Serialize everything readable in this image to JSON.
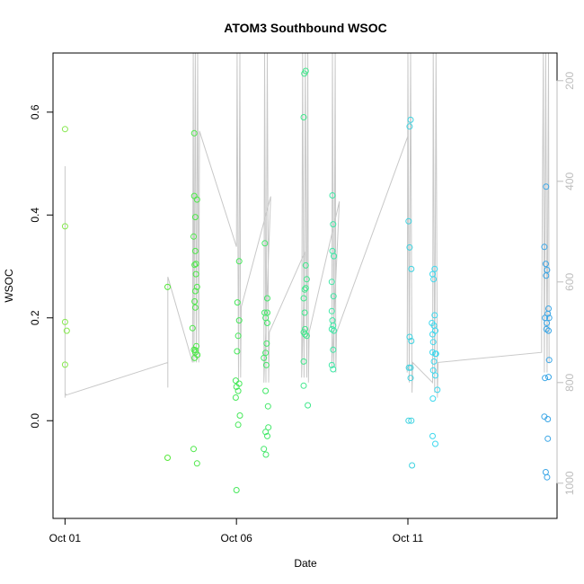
{
  "chart_data": {
    "type": "scatter",
    "title": "ATOM3 Southbound WSOC",
    "xlabel": "Date",
    "ylabel": "WSOC",
    "x_ticks": [
      "Oct 01",
      "Oct 06",
      "Oct 11"
    ],
    "x_tick_days": [
      0,
      5,
      10
    ],
    "xlim_days": [
      -0.35,
      14.35
    ],
    "ylim": [
      -0.19,
      0.715
    ],
    "y_ticks": [
      0.0,
      0.2,
      0.4,
      0.6
    ],
    "y_tick_labels": [
      "0.0",
      "0.2",
      "0.4",
      "0.6"
    ],
    "y2_ticks": [
      200,
      400,
      600,
      800,
      1000
    ],
    "y2_tick_labels": [
      "200",
      "400",
      "600",
      "800",
      "1000"
    ],
    "y2lim": [
      1070,
      145
    ],
    "y2_color": "#bdbdbd",
    "grid": false,
    "colors": {
      "altitude_line": "#c8c8c8",
      "axis": "#000000"
    },
    "points": [
      {
        "day": 0.0,
        "wsoc": 0.567,
        "color": "#86e84e"
      },
      {
        "day": 0.0,
        "wsoc": 0.378,
        "color": "#86e84e"
      },
      {
        "day": 0.0,
        "wsoc": 0.192,
        "color": "#86e84e"
      },
      {
        "day": 0.05,
        "wsoc": 0.175,
        "color": "#86e84e"
      },
      {
        "day": 0.0,
        "wsoc": 0.109,
        "color": "#86e84e"
      },
      {
        "day": 2.99,
        "wsoc": 0.26,
        "color": "#55e83a"
      },
      {
        "day": 2.99,
        "wsoc": -0.072,
        "color": "#55e83a"
      },
      {
        "day": 3.77,
        "wsoc": 0.559,
        "color": "#4ee84a"
      },
      {
        "day": 3.77,
        "wsoc": 0.437,
        "color": "#4ee84a"
      },
      {
        "day": 3.85,
        "wsoc": 0.43,
        "color": "#4ee84a"
      },
      {
        "day": 3.8,
        "wsoc": 0.396,
        "color": "#4ee84a"
      },
      {
        "day": 3.75,
        "wsoc": 0.358,
        "color": "#4ee84a"
      },
      {
        "day": 3.8,
        "wsoc": 0.33,
        "color": "#4ee84a"
      },
      {
        "day": 3.82,
        "wsoc": 0.305,
        "color": "#4ee84a"
      },
      {
        "day": 3.78,
        "wsoc": 0.303,
        "color": "#4ee84a"
      },
      {
        "day": 3.82,
        "wsoc": 0.285,
        "color": "#4ee84a"
      },
      {
        "day": 3.85,
        "wsoc": 0.26,
        "color": "#4ee84a"
      },
      {
        "day": 3.8,
        "wsoc": 0.252,
        "color": "#4ee84a"
      },
      {
        "day": 3.78,
        "wsoc": 0.232,
        "color": "#4ee84a"
      },
      {
        "day": 3.8,
        "wsoc": 0.22,
        "color": "#4ee84a"
      },
      {
        "day": 3.72,
        "wsoc": 0.18,
        "color": "#4ee84a"
      },
      {
        "day": 3.83,
        "wsoc": 0.145,
        "color": "#4ee84a"
      },
      {
        "day": 3.76,
        "wsoc": 0.138,
        "color": "#4ee84a"
      },
      {
        "day": 3.8,
        "wsoc": 0.133,
        "color": "#4ee84a"
      },
      {
        "day": 3.86,
        "wsoc": 0.128,
        "color": "#4ee84a"
      },
      {
        "day": 3.78,
        "wsoc": 0.122,
        "color": "#4ee84a"
      },
      {
        "day": 3.8,
        "wsoc": 0.137,
        "color": "#4ee84a"
      },
      {
        "day": 3.75,
        "wsoc": -0.055,
        "color": "#4ee84a"
      },
      {
        "day": 3.85,
        "wsoc": -0.083,
        "color": "#4ee84a"
      },
      {
        "day": 5.08,
        "wsoc": 0.31,
        "color": "#46e85a"
      },
      {
        "day": 5.03,
        "wsoc": 0.23,
        "color": "#46e85a"
      },
      {
        "day": 5.08,
        "wsoc": 0.195,
        "color": "#46e85a"
      },
      {
        "day": 5.05,
        "wsoc": 0.165,
        "color": "#46e85a"
      },
      {
        "day": 5.02,
        "wsoc": 0.135,
        "color": "#46e85a"
      },
      {
        "day": 4.98,
        "wsoc": 0.078,
        "color": "#46e85a"
      },
      {
        "day": 5.08,
        "wsoc": 0.072,
        "color": "#46e85a"
      },
      {
        "day": 5.0,
        "wsoc": 0.066,
        "color": "#46e85a"
      },
      {
        "day": 5.05,
        "wsoc": 0.058,
        "color": "#46e85a"
      },
      {
        "day": 4.98,
        "wsoc": 0.045,
        "color": "#46e85a"
      },
      {
        "day": 5.1,
        "wsoc": 0.01,
        "color": "#46e85a"
      },
      {
        "day": 5.05,
        "wsoc": -0.008,
        "color": "#46e85a"
      },
      {
        "day": 5.0,
        "wsoc": -0.135,
        "color": "#46e85a"
      },
      {
        "day": 5.83,
        "wsoc": 0.345,
        "color": "#44e86a"
      },
      {
        "day": 5.9,
        "wsoc": 0.238,
        "color": "#44e86a"
      },
      {
        "day": 5.82,
        "wsoc": 0.21,
        "color": "#44e86a"
      },
      {
        "day": 5.9,
        "wsoc": 0.21,
        "color": "#44e86a"
      },
      {
        "day": 5.85,
        "wsoc": 0.2,
        "color": "#44e86a"
      },
      {
        "day": 5.9,
        "wsoc": 0.19,
        "color": "#44e86a"
      },
      {
        "day": 5.88,
        "wsoc": 0.15,
        "color": "#44e86a"
      },
      {
        "day": 5.85,
        "wsoc": 0.132,
        "color": "#44e86a"
      },
      {
        "day": 5.8,
        "wsoc": 0.122,
        "color": "#44e86a"
      },
      {
        "day": 5.87,
        "wsoc": 0.108,
        "color": "#44e86a"
      },
      {
        "day": 5.85,
        "wsoc": 0.058,
        "color": "#44e86a"
      },
      {
        "day": 5.92,
        "wsoc": 0.028,
        "color": "#44e86a"
      },
      {
        "day": 5.93,
        "wsoc": -0.013,
        "color": "#44e86a"
      },
      {
        "day": 5.85,
        "wsoc": -0.022,
        "color": "#44e86a"
      },
      {
        "day": 5.9,
        "wsoc": -0.03,
        "color": "#44e86a"
      },
      {
        "day": 5.8,
        "wsoc": -0.055,
        "color": "#44e86a"
      },
      {
        "day": 5.86,
        "wsoc": -0.066,
        "color": "#44e86a"
      },
      {
        "day": 7.02,
        "wsoc": 0.68,
        "color": "#40e88c"
      },
      {
        "day": 6.98,
        "wsoc": 0.675,
        "color": "#40e88c"
      },
      {
        "day": 6.96,
        "wsoc": 0.59,
        "color": "#40e88c"
      },
      {
        "day": 7.02,
        "wsoc": 0.302,
        "color": "#40e88c"
      },
      {
        "day": 7.05,
        "wsoc": 0.275,
        "color": "#40e88c"
      },
      {
        "day": 7.02,
        "wsoc": 0.258,
        "color": "#40e88c"
      },
      {
        "day": 6.99,
        "wsoc": 0.255,
        "color": "#40e88c"
      },
      {
        "day": 6.96,
        "wsoc": 0.238,
        "color": "#40e88c"
      },
      {
        "day": 6.99,
        "wsoc": 0.21,
        "color": "#40e88c"
      },
      {
        "day": 6.96,
        "wsoc": 0.172,
        "color": "#40e88c"
      },
      {
        "day": 7.0,
        "wsoc": 0.168,
        "color": "#40e88c"
      },
      {
        "day": 7.05,
        "wsoc": 0.165,
        "color": "#40e88c"
      },
      {
        "day": 7.0,
        "wsoc": 0.178,
        "color": "#40e88c"
      },
      {
        "day": 6.96,
        "wsoc": 0.115,
        "color": "#40e88c"
      },
      {
        "day": 6.96,
        "wsoc": 0.068,
        "color": "#40e88c"
      },
      {
        "day": 7.08,
        "wsoc": 0.03,
        "color": "#40e88c"
      },
      {
        "day": 7.8,
        "wsoc": 0.438,
        "color": "#3ee8a6"
      },
      {
        "day": 7.82,
        "wsoc": 0.382,
        "color": "#3ee8a6"
      },
      {
        "day": 7.8,
        "wsoc": 0.33,
        "color": "#3ee8a6"
      },
      {
        "day": 7.84,
        "wsoc": 0.32,
        "color": "#3ee8a6"
      },
      {
        "day": 7.78,
        "wsoc": 0.27,
        "color": "#3ee8a6"
      },
      {
        "day": 7.83,
        "wsoc": 0.242,
        "color": "#3ee8a6"
      },
      {
        "day": 7.78,
        "wsoc": 0.213,
        "color": "#3ee8a6"
      },
      {
        "day": 7.8,
        "wsoc": 0.195,
        "color": "#3ee8a6"
      },
      {
        "day": 7.82,
        "wsoc": 0.185,
        "color": "#3ee8a6"
      },
      {
        "day": 7.78,
        "wsoc": 0.178,
        "color": "#3ee8a6"
      },
      {
        "day": 7.84,
        "wsoc": 0.175,
        "color": "#3ee8a6"
      },
      {
        "day": 7.82,
        "wsoc": 0.138,
        "color": "#3ee8a6"
      },
      {
        "day": 7.78,
        "wsoc": 0.108,
        "color": "#3ee8a6"
      },
      {
        "day": 7.82,
        "wsoc": 0.1,
        "color": "#3ee8a6"
      },
      {
        "day": 10.08,
        "wsoc": 0.585,
        "color": "#3ed2e0"
      },
      {
        "day": 10.05,
        "wsoc": 0.572,
        "color": "#3ed2e0"
      },
      {
        "day": 10.02,
        "wsoc": 0.388,
        "color": "#3ed2e0"
      },
      {
        "day": 10.05,
        "wsoc": 0.337,
        "color": "#3ed2e0"
      },
      {
        "day": 10.1,
        "wsoc": 0.295,
        "color": "#3ed2e0"
      },
      {
        "day": 10.05,
        "wsoc": 0.163,
        "color": "#3ed2e0"
      },
      {
        "day": 10.1,
        "wsoc": 0.155,
        "color": "#3ed2e0"
      },
      {
        "day": 10.03,
        "wsoc": 0.103,
        "color": "#3ed2e0"
      },
      {
        "day": 10.08,
        "wsoc": 0.103,
        "color": "#3ed2e0"
      },
      {
        "day": 10.08,
        "wsoc": 0.083,
        "color": "#3ed2e0"
      },
      {
        "day": 10.02,
        "wsoc": 0.0,
        "color": "#3ed2e0"
      },
      {
        "day": 10.1,
        "wsoc": 0.0,
        "color": "#3ed2e0"
      },
      {
        "day": 10.12,
        "wsoc": -0.087,
        "color": "#3ed2e0"
      },
      {
        "day": 10.78,
        "wsoc": 0.295,
        "color": "#3ed8ee"
      },
      {
        "day": 10.72,
        "wsoc": 0.285,
        "color": "#3ed8ee"
      },
      {
        "day": 10.75,
        "wsoc": 0.275,
        "color": "#3ed8ee"
      },
      {
        "day": 10.78,
        "wsoc": 0.205,
        "color": "#3ed8ee"
      },
      {
        "day": 10.7,
        "wsoc": 0.19,
        "color": "#3ed8ee"
      },
      {
        "day": 10.76,
        "wsoc": 0.185,
        "color": "#3ed8ee"
      },
      {
        "day": 10.8,
        "wsoc": 0.175,
        "color": "#3ed8ee"
      },
      {
        "day": 10.72,
        "wsoc": 0.168,
        "color": "#3ed8ee"
      },
      {
        "day": 10.74,
        "wsoc": 0.153,
        "color": "#3ed8ee"
      },
      {
        "day": 10.8,
        "wsoc": 0.13,
        "color": "#3ed8ee"
      },
      {
        "day": 10.82,
        "wsoc": 0.13,
        "color": "#3ed8ee"
      },
      {
        "day": 10.72,
        "wsoc": 0.133,
        "color": "#3ed8ee"
      },
      {
        "day": 10.76,
        "wsoc": 0.115,
        "color": "#3ed8ee"
      },
      {
        "day": 10.74,
        "wsoc": 0.098,
        "color": "#3ed8ee"
      },
      {
        "day": 10.8,
        "wsoc": 0.088,
        "color": "#3ed8ee"
      },
      {
        "day": 10.86,
        "wsoc": 0.06,
        "color": "#3ed8ee"
      },
      {
        "day": 10.73,
        "wsoc": 0.043,
        "color": "#3ed8ee"
      },
      {
        "day": 10.72,
        "wsoc": -0.03,
        "color": "#3ed8ee"
      },
      {
        "day": 10.8,
        "wsoc": -0.045,
        "color": "#3ed8ee"
      },
      {
        "day": 14.03,
        "wsoc": 0.455,
        "color": "#3aa6e6"
      },
      {
        "day": 13.98,
        "wsoc": 0.338,
        "color": "#3aa6e6"
      },
      {
        "day": 14.02,
        "wsoc": 0.305,
        "color": "#3aa6e6"
      },
      {
        "day": 14.06,
        "wsoc": 0.293,
        "color": "#3aa6e6"
      },
      {
        "day": 14.03,
        "wsoc": 0.282,
        "color": "#3aa6e6"
      },
      {
        "day": 14.1,
        "wsoc": 0.218,
        "color": "#3aa6e6"
      },
      {
        "day": 14.08,
        "wsoc": 0.208,
        "color": "#3aa6e6"
      },
      {
        "day": 14.0,
        "wsoc": 0.2,
        "color": "#3aa6e6"
      },
      {
        "day": 14.12,
        "wsoc": 0.2,
        "color": "#3aa6e6"
      },
      {
        "day": 14.05,
        "wsoc": 0.19,
        "color": "#3aa6e6"
      },
      {
        "day": 14.04,
        "wsoc": 0.178,
        "color": "#3aa6e6"
      },
      {
        "day": 14.1,
        "wsoc": 0.175,
        "color": "#3aa6e6"
      },
      {
        "day": 14.12,
        "wsoc": 0.118,
        "color": "#3aa6e6"
      },
      {
        "day": 14.1,
        "wsoc": 0.085,
        "color": "#3aa6e6"
      },
      {
        "day": 14.0,
        "wsoc": 0.083,
        "color": "#3aa6e6"
      },
      {
        "day": 13.98,
        "wsoc": 0.008,
        "color": "#3aa6e6"
      },
      {
        "day": 14.08,
        "wsoc": 0.003,
        "color": "#3aa6e6"
      },
      {
        "day": 14.08,
        "wsoc": -0.035,
        "color": "#3aa6e6"
      },
      {
        "day": 14.02,
        "wsoc": -0.1,
        "color": "#3aa6e6"
      },
      {
        "day": 14.06,
        "wsoc": -0.11,
        "color": "#3aa6e6"
      }
    ],
    "altitude_track": [
      [
        0.0,
        830
      ],
      [
        0.0,
        370
      ],
      [
        0.0,
        820
      ],
      [
        0.03,
        825
      ],
      [
        3.0,
        760
      ],
      [
        3.0,
        810
      ],
      [
        3.0,
        590
      ],
      [
        3.72,
        760
      ],
      [
        3.74,
        145
      ],
      [
        3.76,
        760
      ],
      [
        3.8,
        145
      ],
      [
        3.83,
        760
      ],
      [
        3.87,
        145
      ],
      [
        3.9,
        760
      ],
      [
        3.92,
        300
      ],
      [
        5.0,
        530
      ],
      [
        5.02,
        145
      ],
      [
        5.06,
        800
      ],
      [
        5.1,
        145
      ],
      [
        5.12,
        790
      ],
      [
        5.14,
        650
      ],
      [
        6.0,
        430
      ],
      [
        5.8,
        800
      ],
      [
        5.82,
        145
      ],
      [
        5.86,
        800
      ],
      [
        5.9,
        145
      ],
      [
        5.94,
        800
      ],
      [
        5.96,
        700
      ],
      [
        7.0,
        540
      ],
      [
        6.9,
        790
      ],
      [
        6.93,
        145
      ],
      [
        6.97,
        790
      ],
      [
        7.01,
        145
      ],
      [
        7.05,
        790
      ],
      [
        7.08,
        145
      ],
      [
        7.1,
        800
      ],
      [
        7.12,
        700
      ],
      [
        8.0,
        440
      ],
      [
        7.78,
        770
      ],
      [
        7.8,
        145
      ],
      [
        7.84,
        770
      ],
      [
        7.88,
        145
      ],
      [
        7.9,
        780
      ],
      [
        7.92,
        700
      ],
      [
        10.0,
        310
      ],
      [
        9.98,
        780
      ],
      [
        10.0,
        145
      ],
      [
        10.04,
        800
      ],
      [
        10.08,
        145
      ],
      [
        10.12,
        820
      ],
      [
        10.14,
        760
      ],
      [
        10.72,
        800
      ],
      [
        10.74,
        145
      ],
      [
        10.78,
        820
      ],
      [
        10.82,
        145
      ],
      [
        10.86,
        830
      ],
      [
        10.88,
        760
      ],
      [
        13.9,
        740
      ],
      [
        13.9,
        700
      ],
      [
        13.95,
        145
      ],
      [
        13.98,
        780
      ],
      [
        14.02,
        145
      ],
      [
        14.06,
        780
      ],
      [
        14.1,
        145
      ],
      [
        14.12,
        760
      ]
    ]
  }
}
